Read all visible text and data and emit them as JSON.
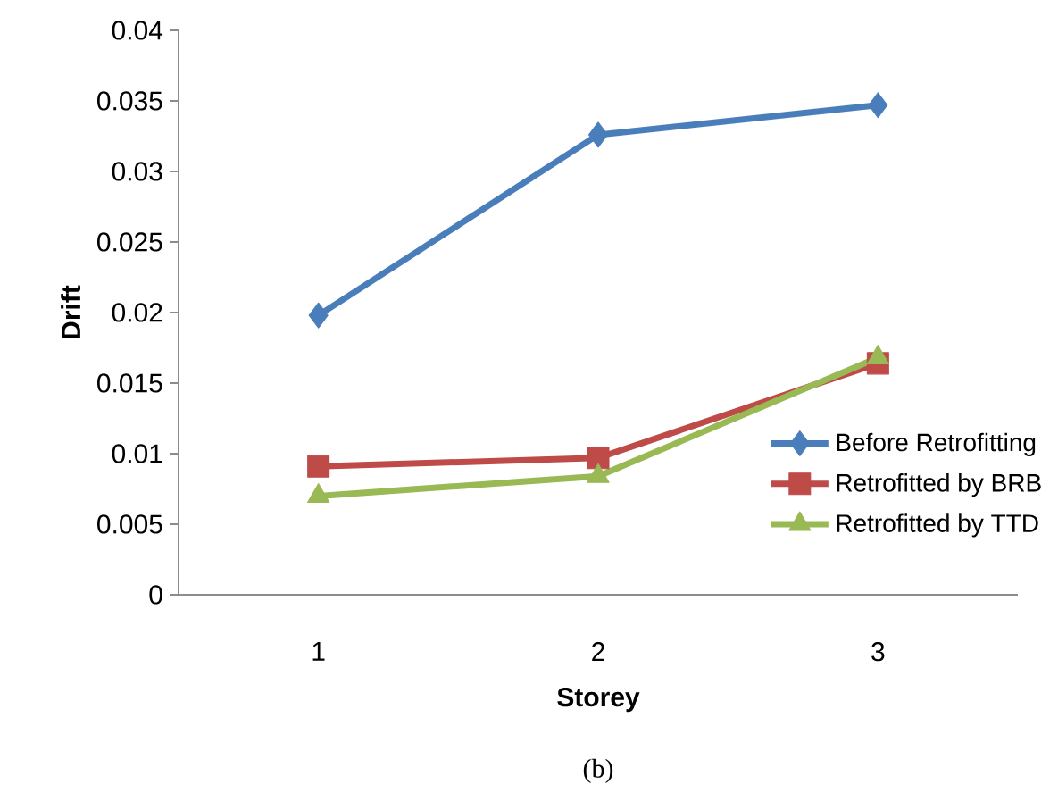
{
  "chart_data": {
    "type": "line",
    "xlabel": "Storey",
    "ylabel": "Drift",
    "categories": [
      "1",
      "2",
      "3"
    ],
    "series": [
      {
        "name": "Before Retrofitting",
        "color": "#4a7ebb",
        "marker": "diamond",
        "values": [
          0.0198,
          0.0326,
          0.0347
        ]
      },
      {
        "name": "Retrofitted by BRB",
        "color": "#be4b48",
        "marker": "square",
        "values": [
          0.0091,
          0.0097,
          0.0164
        ]
      },
      {
        "name": "Retrofitted by TTD",
        "color": "#98b954",
        "marker": "triangle",
        "values": [
          0.007,
          0.0084,
          0.0168
        ]
      }
    ],
    "ylim": [
      0,
      0.04
    ],
    "yticks": [
      0,
      0.005,
      0.01,
      0.015,
      0.02,
      0.025,
      0.03,
      0.035,
      0.04
    ],
    "grid": false,
    "legend": "right",
    "line_style": "solid",
    "annotations": [
      "(b)"
    ]
  }
}
